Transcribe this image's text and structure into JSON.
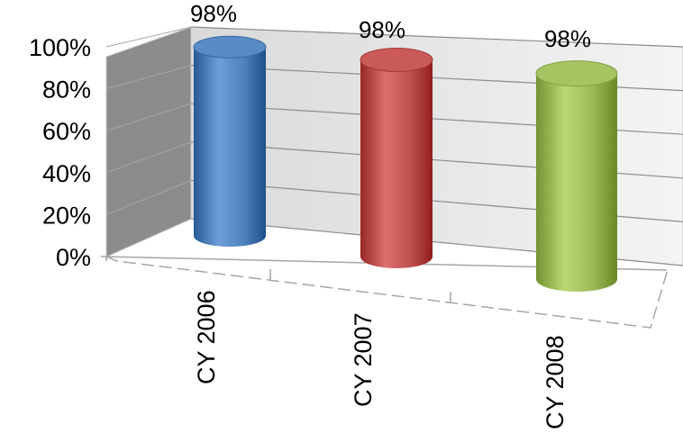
{
  "chart_data": {
    "type": "bar",
    "style": "3d-cylinder",
    "categories": [
      "CY 2006",
      "CY 2007",
      "CY 2008"
    ],
    "values": [
      98,
      98,
      98
    ],
    "data_labels": [
      "98%",
      "98%",
      "98%"
    ],
    "colors": [
      "#4f81bd",
      "#c0504d",
      "#9bbb59"
    ],
    "title": "",
    "xlabel": "",
    "ylabel": "",
    "ylim": [
      0,
      100
    ],
    "y_ticks": [
      0,
      20,
      40,
      60,
      80,
      100
    ],
    "y_tick_labels": [
      "0%",
      "20%",
      "40%",
      "60%",
      "80%",
      "100%"
    ],
    "grid": true,
    "legend": "none"
  }
}
